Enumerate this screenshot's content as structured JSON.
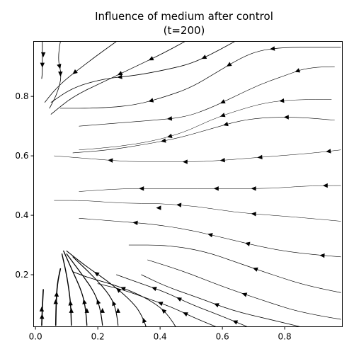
{
  "chart_data": {
    "type": "streamplot",
    "title_line1": "Influence of medium after control",
    "title_line2": "(t=200)",
    "xlabel": "",
    "ylabel": "",
    "xlim": [
      -0.006,
      0.985
    ],
    "ylim": [
      0.025,
      0.985
    ],
    "x_ticks": [
      0.0,
      0.2,
      0.4,
      0.6,
      0.8
    ],
    "x_tick_labels": [
      "0.0",
      "0.2",
      "0.4",
      "0.6",
      "0.8"
    ],
    "y_ticks": [
      0.2,
      0.4,
      0.6,
      0.8
    ],
    "y_tick_labels": [
      "0.2",
      "0.4",
      "0.6",
      "0.8"
    ],
    "grid": false,
    "line_color": "#000000",
    "streamlines": [
      {
        "points": [
          [
            0.02,
            0.03
          ],
          [
            0.022,
            0.09
          ],
          [
            0.025,
            0.15
          ]
        ],
        "width": 1.6,
        "arrow": 1
      },
      {
        "points": [
          [
            0.065,
            0.03
          ],
          [
            0.066,
            0.1
          ],
          [
            0.07,
            0.17
          ],
          [
            0.08,
            0.22
          ]
        ],
        "width": 1.6,
        "arrow": 1
      },
      {
        "points": [
          [
            0.115,
            0.03
          ],
          [
            0.114,
            0.08
          ],
          [
            0.11,
            0.13
          ],
          [
            0.1,
            0.2
          ],
          [
            0.085,
            0.27
          ]
        ],
        "width": 1.4,
        "arrow": 1
      },
      {
        "points": [
          [
            0.165,
            0.03
          ],
          [
            0.162,
            0.08
          ],
          [
            0.15,
            0.14
          ],
          [
            0.12,
            0.21
          ],
          [
            0.09,
            0.28
          ]
        ],
        "width": 1.3,
        "arrow": 1
      },
      {
        "points": [
          [
            0.215,
            0.03
          ],
          [
            0.21,
            0.08
          ],
          [
            0.19,
            0.14
          ],
          [
            0.15,
            0.2
          ],
          [
            0.1,
            0.27
          ]
        ],
        "width": 1.2,
        "arrow": 1
      },
      {
        "points": [
          [
            0.265,
            0.03
          ],
          [
            0.26,
            0.08
          ],
          [
            0.24,
            0.13
          ],
          [
            0.19,
            0.19
          ],
          [
            0.12,
            0.26
          ]
        ],
        "width": 1.1,
        "arrow": 1
      },
      {
        "points": [
          [
            0.355,
            0.025
          ],
          [
            0.34,
            0.07
          ],
          [
            0.3,
            0.12
          ],
          [
            0.23,
            0.18
          ],
          [
            0.16,
            0.23
          ],
          [
            0.1,
            0.28
          ]
        ],
        "width": 1.0,
        "arrow": 3
      },
      {
        "points": [
          [
            0.45,
            0.025
          ],
          [
            0.43,
            0.06
          ],
          [
            0.39,
            0.1
          ],
          [
            0.32,
            0.14
          ],
          [
            0.24,
            0.17
          ],
          [
            0.17,
            0.19
          ],
          [
            0.12,
            0.21
          ]
        ],
        "width": 0.9,
        "arrow": 2
      },
      {
        "points": [
          [
            0.58,
            0.025
          ],
          [
            0.52,
            0.05
          ],
          [
            0.44,
            0.09
          ],
          [
            0.36,
            0.12
          ],
          [
            0.28,
            0.15
          ],
          [
            0.2,
            0.17
          ]
        ],
        "width": 0.8,
        "arrow": 2
      },
      {
        "points": [
          [
            0.68,
            0.025
          ],
          [
            0.6,
            0.06
          ],
          [
            0.5,
            0.1
          ],
          [
            0.42,
            0.14
          ],
          [
            0.34,
            0.17
          ],
          [
            0.26,
            0.2
          ]
        ],
        "width": 0.8,
        "arrow": 3
      },
      {
        "points": [
          [
            0.85,
            0.025
          ],
          [
            0.75,
            0.05
          ],
          [
            0.63,
            0.08
          ],
          [
            0.53,
            0.12
          ],
          [
            0.42,
            0.16
          ],
          [
            0.34,
            0.2
          ]
        ],
        "width": 0.8,
        "arrow": 1
      },
      {
        "points": [
          [
            0.98,
            0.05
          ],
          [
            0.86,
            0.07
          ],
          [
            0.74,
            0.11
          ],
          [
            0.6,
            0.16
          ],
          [
            0.48,
            0.21
          ],
          [
            0.36,
            0.25
          ]
        ],
        "width": 0.7,
        "arrow": 1
      },
      {
        "points": [
          [
            0.98,
            0.14
          ],
          [
            0.88,
            0.16
          ],
          [
            0.76,
            0.2
          ],
          [
            0.65,
            0.24
          ],
          [
            0.54,
            0.28
          ],
          [
            0.42,
            0.3
          ],
          [
            0.3,
            0.3
          ]
        ],
        "width": 0.7,
        "arrow": 1
      },
      {
        "points": [
          [
            0.98,
            0.26
          ],
          [
            0.86,
            0.27
          ],
          [
            0.74,
            0.29
          ],
          [
            0.62,
            0.32
          ],
          [
            0.5,
            0.35
          ],
          [
            0.38,
            0.37
          ],
          [
            0.26,
            0.38
          ],
          [
            0.14,
            0.39
          ]
        ],
        "width": 0.6,
        "arrow": 4
      },
      {
        "points": [
          [
            0.98,
            0.38
          ],
          [
            0.88,
            0.39
          ],
          [
            0.76,
            0.4
          ],
          [
            0.64,
            0.41
          ],
          [
            0.52,
            0.43
          ],
          [
            0.4,
            0.44
          ],
          [
            0.28,
            0.44
          ],
          [
            0.16,
            0.45
          ],
          [
            0.06,
            0.45
          ]
        ],
        "width": 0.5,
        "arrow": 2
      },
      {
        "points": [
          [
            0.98,
            0.5
          ],
          [
            0.88,
            0.5
          ],
          [
            0.76,
            0.49
          ],
          [
            0.64,
            0.49
          ],
          [
            0.52,
            0.49
          ],
          [
            0.4,
            0.49
          ],
          [
            0.28,
            0.49
          ],
          [
            0.14,
            0.48
          ]
        ],
        "width": 0.5,
        "arrow": 4
      },
      {
        "points": [
          [
            0.98,
            0.62
          ],
          [
            0.9,
            0.61
          ],
          [
            0.78,
            0.6
          ],
          [
            0.66,
            0.59
          ],
          [
            0.54,
            0.58
          ],
          [
            0.42,
            0.58
          ],
          [
            0.3,
            0.58
          ],
          [
            0.18,
            0.59
          ],
          [
            0.06,
            0.6
          ]
        ],
        "width": 0.5,
        "arrow": 5
      },
      {
        "points": [
          [
            0.96,
            0.72
          ],
          [
            0.86,
            0.73
          ],
          [
            0.75,
            0.73
          ],
          [
            0.66,
            0.72
          ],
          [
            0.56,
            0.69
          ],
          [
            0.46,
            0.66
          ],
          [
            0.36,
            0.64
          ],
          [
            0.24,
            0.62
          ],
          [
            0.12,
            0.61
          ]
        ],
        "width": 0.6,
        "arrow": 3
      },
      {
        "points": [
          [
            0.96,
            0.9
          ],
          [
            0.88,
            0.9
          ],
          [
            0.8,
            0.87
          ],
          [
            0.72,
            0.84
          ],
          [
            0.64,
            0.8
          ],
          [
            0.56,
            0.76
          ],
          [
            0.48,
            0.73
          ],
          [
            0.38,
            0.72
          ],
          [
            0.26,
            0.71
          ],
          [
            0.14,
            0.7
          ]
        ],
        "width": 0.6,
        "arrow": 3
      },
      {
        "points": [
          [
            0.95,
            0.79
          ],
          [
            0.84,
            0.79
          ],
          [
            0.74,
            0.78
          ],
          [
            0.64,
            0.75
          ],
          [
            0.56,
            0.72
          ],
          [
            0.48,
            0.68
          ],
          [
            0.38,
            0.65
          ],
          [
            0.26,
            0.63
          ],
          [
            0.14,
            0.62
          ]
        ],
        "width": 0.5,
        "arrow": 3
      },
      {
        "points": [
          [
            0.98,
            0.965
          ],
          [
            0.9,
            0.965
          ],
          [
            0.8,
            0.965
          ],
          [
            0.72,
            0.955
          ],
          [
            0.66,
            0.93
          ],
          [
            0.58,
            0.88
          ],
          [
            0.5,
            0.83
          ],
          [
            0.42,
            0.8
          ],
          [
            0.32,
            0.77
          ],
          [
            0.2,
            0.76
          ],
          [
            0.08,
            0.76
          ]
        ],
        "width": 0.7,
        "arrow": 3
      },
      {
        "points": [
          [
            0.64,
            0.985
          ],
          [
            0.58,
            0.95
          ],
          [
            0.5,
            0.91
          ],
          [
            0.42,
            0.89
          ],
          [
            0.32,
            0.87
          ],
          [
            0.22,
            0.86
          ],
          [
            0.12,
            0.83
          ],
          [
            0.05,
            0.78
          ]
        ],
        "width": 0.8,
        "arrow": 2
      },
      {
        "points": [
          [
            0.48,
            0.985
          ],
          [
            0.42,
            0.95
          ],
          [
            0.32,
            0.9
          ],
          [
            0.22,
            0.85
          ],
          [
            0.12,
            0.8
          ],
          [
            0.05,
            0.74
          ]
        ],
        "width": 0.8,
        "arrow": 2
      },
      {
        "points": [
          [
            0.26,
            0.985
          ],
          [
            0.2,
            0.94
          ],
          [
            0.15,
            0.9
          ],
          [
            0.1,
            0.86
          ],
          [
            0.06,
            0.82
          ],
          [
            0.03,
            0.78
          ]
        ],
        "width": 0.8,
        "arrow": 1
      },
      {
        "points": [
          [
            0.08,
            0.985
          ],
          [
            0.07,
            0.93
          ],
          [
            0.085,
            0.87
          ],
          [
            0.07,
            0.81
          ],
          [
            0.045,
            0.76
          ]
        ],
        "width": 0.8,
        "arrow": 1
      },
      {
        "points": [
          [
            0.022,
            0.985
          ],
          [
            0.022,
            0.93
          ],
          [
            0.022,
            0.88
          ],
          [
            0.02,
            0.86
          ]
        ],
        "width": 0.9,
        "arrow": 1
      }
    ],
    "arrows": [
      {
        "x": 0.02,
        "y": 0.085,
        "dir": "up"
      },
      {
        "x": 0.065,
        "y": 0.11,
        "dir": "up"
      },
      {
        "x": 0.115,
        "y": 0.08,
        "dir": "up"
      },
      {
        "x": 0.165,
        "y": 0.08,
        "dir": "up"
      },
      {
        "x": 0.215,
        "y": 0.08,
        "dir": "up"
      },
      {
        "x": 0.265,
        "y": 0.08,
        "dir": "up"
      },
      {
        "x": 0.025,
        "y": 0.94,
        "dir": "down"
      },
      {
        "x": 0.08,
        "y": 0.875,
        "dir": "down"
      },
      {
        "x": 0.395,
        "y": 0.425,
        "dir": "left"
      }
    ]
  }
}
